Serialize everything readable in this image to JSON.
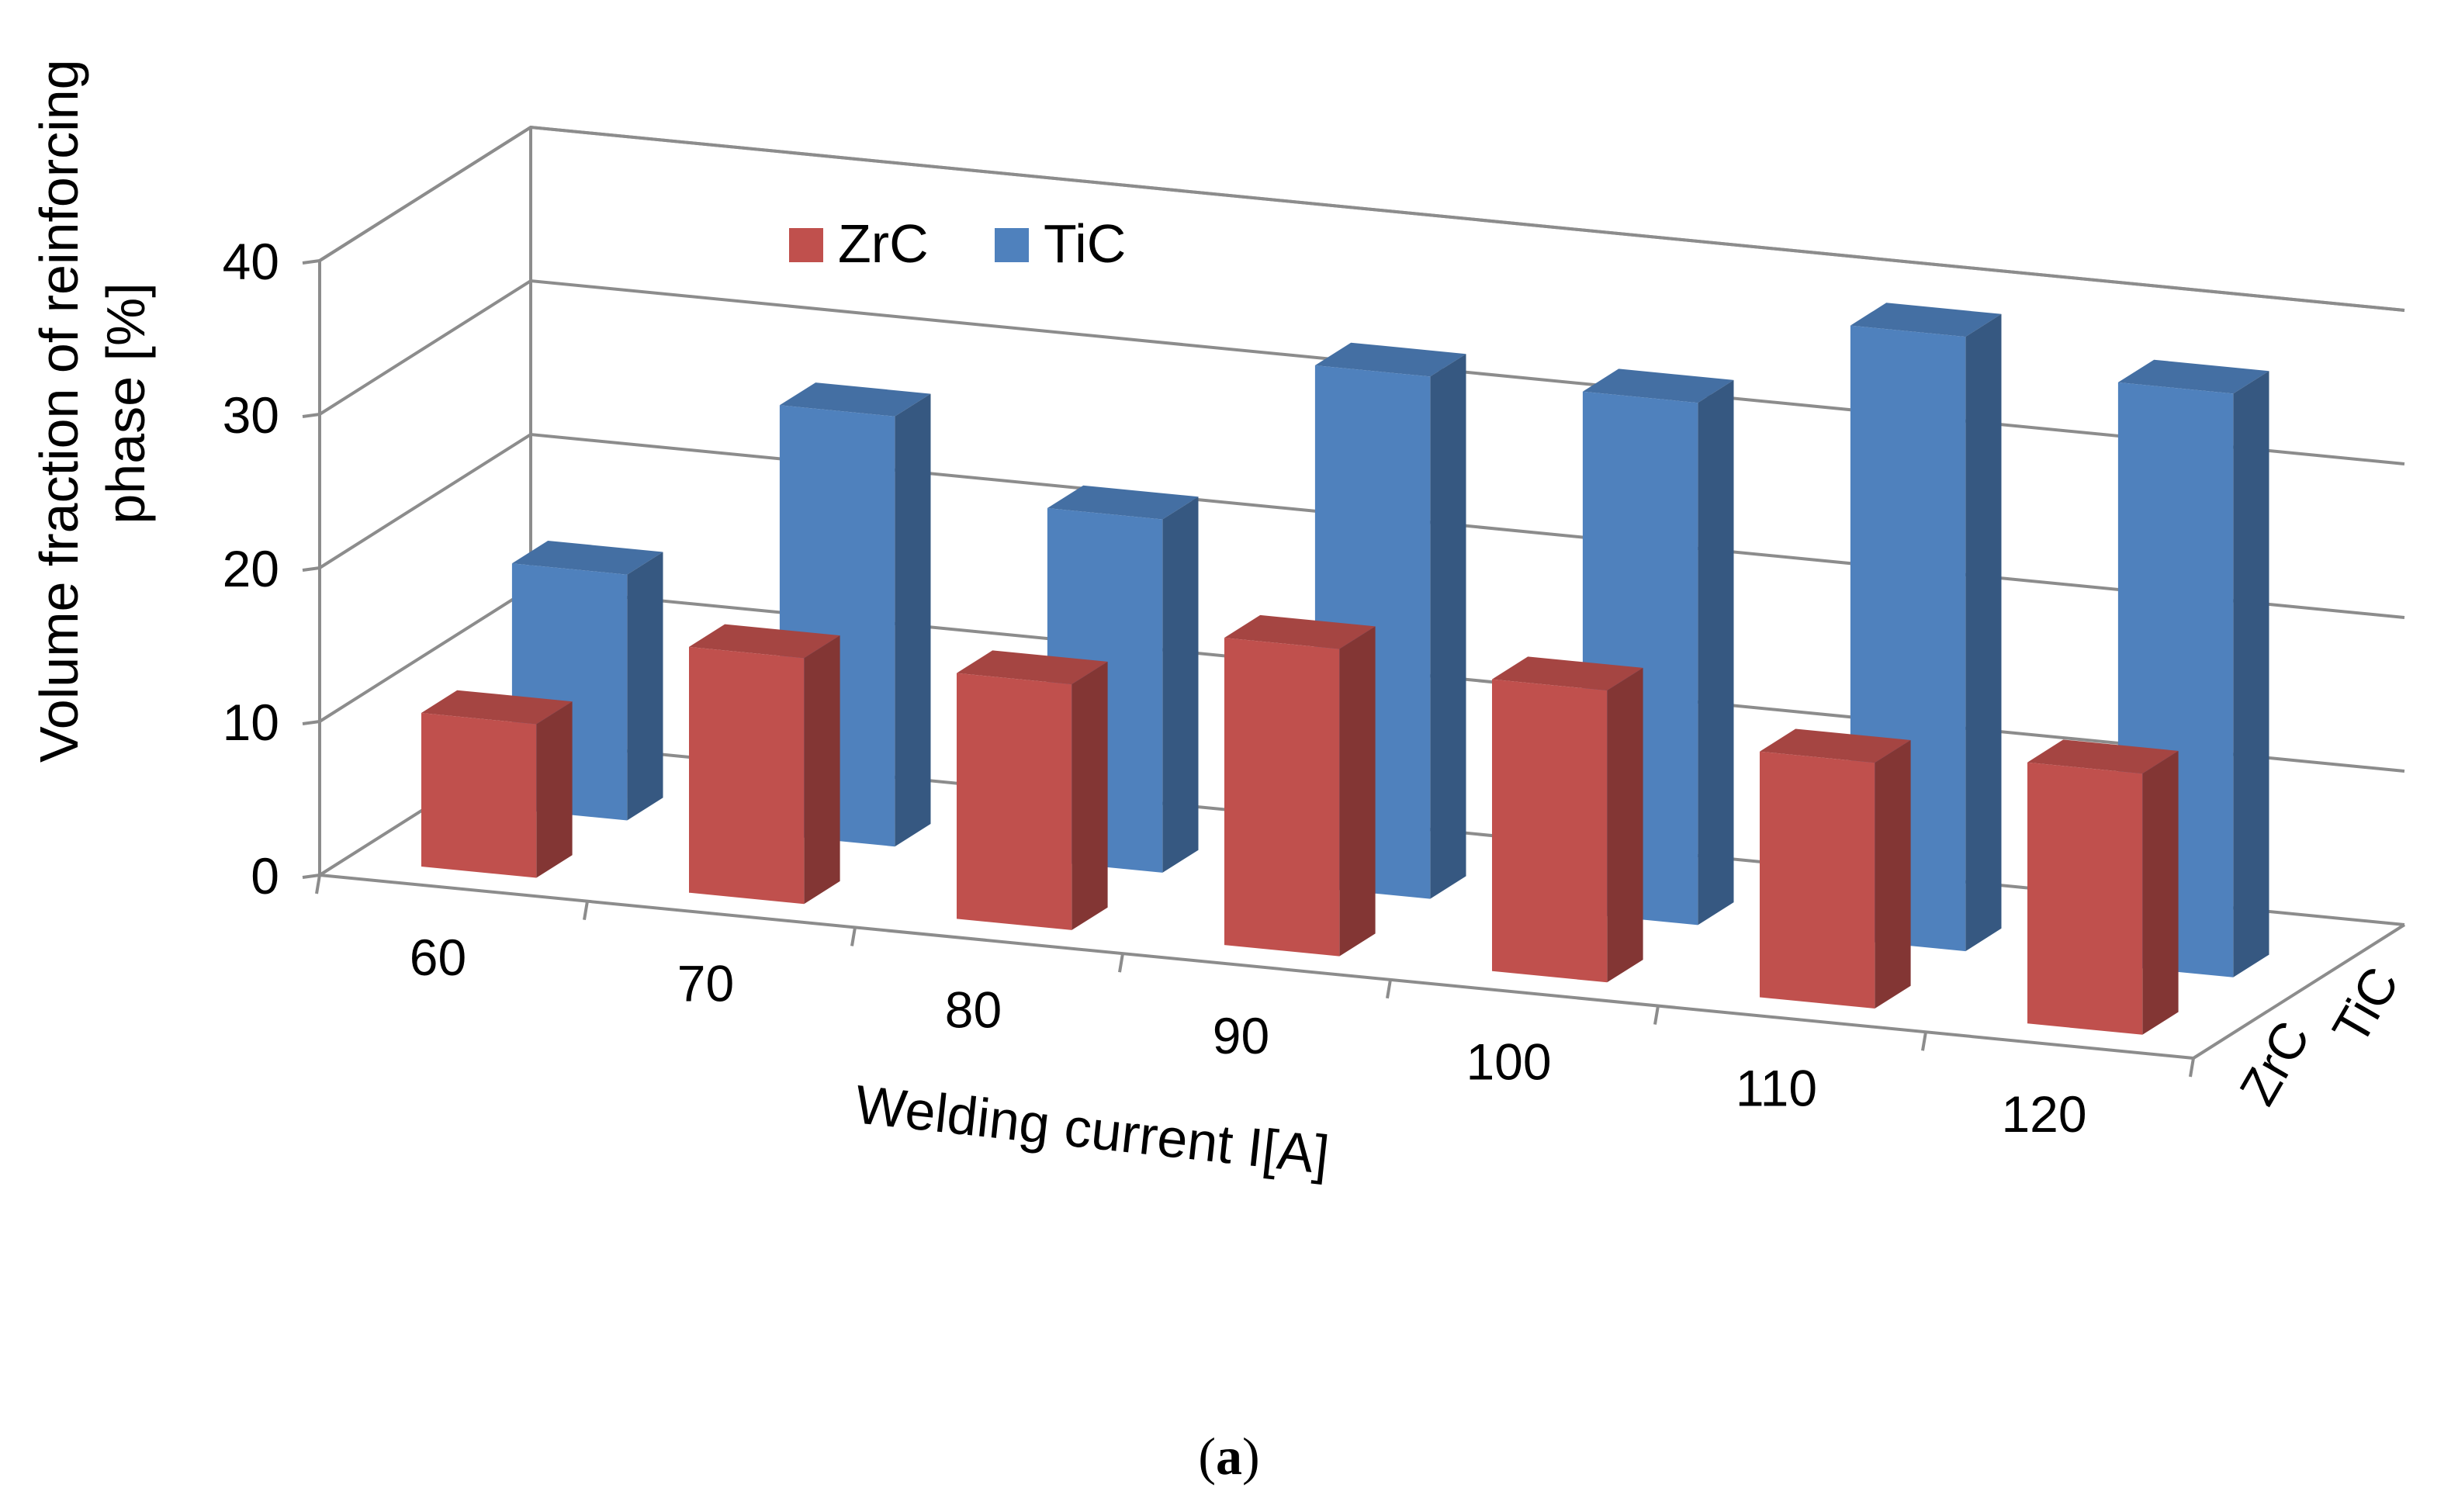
{
  "chart_data": {
    "type": "bar",
    "subtype": "3d-clustered-depth",
    "title": "",
    "categories": [
      "60",
      "70",
      "80",
      "90",
      "100",
      "110",
      "120"
    ],
    "series": [
      {
        "name": "ZrC",
        "color": "#C0504D",
        "values": [
          10,
          16,
          16,
          20,
          19,
          16,
          17
        ]
      },
      {
        "name": "TiC",
        "color": "#4F81BD",
        "values": [
          16,
          28,
          23,
          34,
          34,
          40,
          38
        ]
      }
    ],
    "depth_labels": [
      "ZrC",
      "TiC"
    ],
    "xlabel": "Welding current I[A]",
    "ylabel": "Volume fraction of reinforcing phase [%]",
    "ylabel_lines": [
      "Volume fraction of reinforcing",
      "phase [%]"
    ],
    "yticks": [
      "0",
      "10",
      "20",
      "30",
      "40"
    ],
    "ylim": [
      0,
      40
    ],
    "grid": true,
    "legend": "top-left",
    "caption_open": "(",
    "caption_letter": "a",
    "caption_close": ")"
  }
}
